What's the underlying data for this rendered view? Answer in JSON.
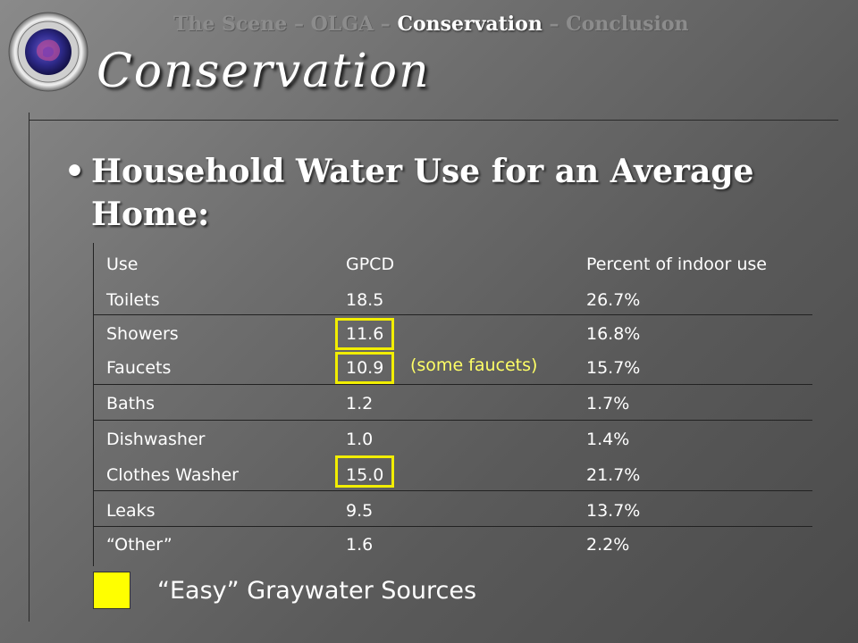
{
  "nav": {
    "items": [
      {
        "label": "The Scene",
        "active": false
      },
      {
        "label": " – ",
        "active": false
      },
      {
        "label": "OLGA",
        "active": false
      },
      {
        "label": " – ",
        "active": false
      },
      {
        "label": "Conservation",
        "active": true
      },
      {
        "label": " – ",
        "active": false
      },
      {
        "label": "Conclusion",
        "active": false
      }
    ]
  },
  "slide": {
    "title": "Conservation",
    "bullet": "•",
    "heading": "Household Water Use for an Average Home:"
  },
  "table": {
    "headers": [
      "Use",
      "GPCD",
      "Percent of indoor use"
    ],
    "rows": [
      [
        "Toilets",
        "18.5",
        "26.7%"
      ],
      [
        "Showers",
        "11.6",
        "16.8%"
      ],
      [
        "Faucets",
        "10.9",
        "15.7%"
      ],
      [
        "Baths",
        "1.2",
        "1.7%"
      ],
      [
        "Dishwasher",
        "1.0",
        "1.4%"
      ],
      [
        "Clothes Washer",
        "15.0",
        "21.7%"
      ],
      [
        "Leaks",
        "9.5",
        "13.7%"
      ],
      [
        "“Other”",
        "1.6",
        "2.2%"
      ]
    ],
    "highlighted_rows": [
      "Showers",
      "Faucets",
      "Clothes Washer"
    ],
    "note": "(some faucets)"
  },
  "legend": {
    "label": "“Easy” Graywater Sources",
    "color": "#ffff00"
  },
  "colors": {
    "highlight": "#f2ee00",
    "note": "#ffff66",
    "nav_inactive": "#8c8c8c"
  }
}
